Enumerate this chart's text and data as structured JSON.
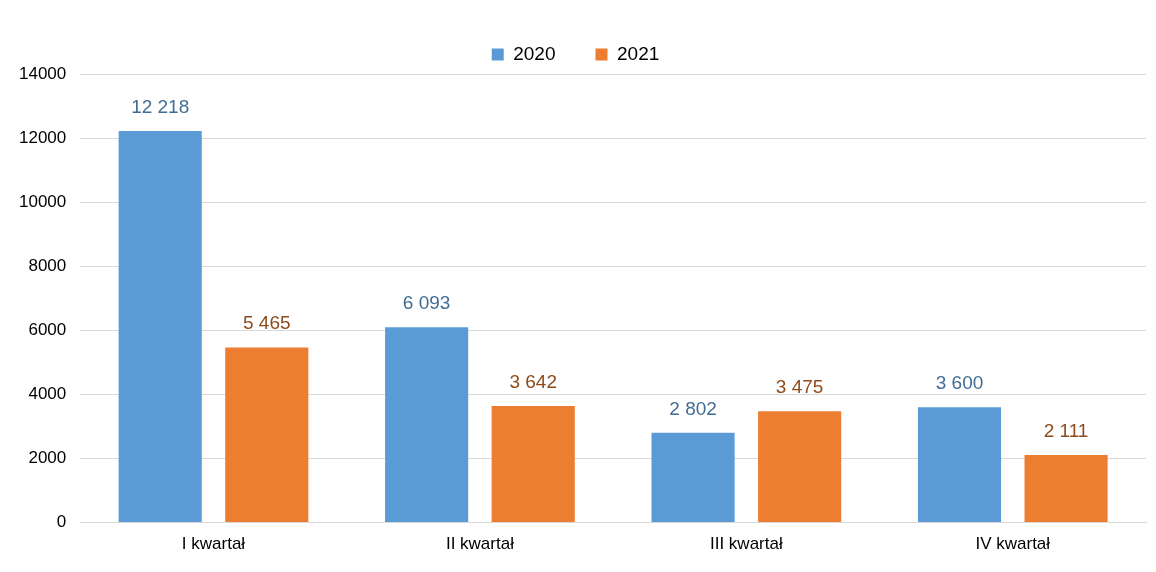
{
  "chart_data": {
    "type": "bar",
    "categories": [
      "I kwartał",
      "II kwartał",
      "III kwartał",
      "IV kwartał"
    ],
    "series": [
      {
        "name": "2020",
        "color": "#5b9bd5",
        "values": [
          12218,
          6093,
          2802,
          3600
        ],
        "value_labels": [
          "12 218",
          "6 093",
          "2 802",
          "3 600"
        ]
      },
      {
        "name": "2021",
        "color": "#ed7d31",
        "values": [
          5465,
          3642,
          3475,
          2111
        ],
        "value_labels": [
          "5 465",
          "3 642",
          "3 475",
          "2 111"
        ]
      }
    ],
    "ylim": [
      0,
      14000
    ],
    "yticks": [
      0,
      2000,
      4000,
      6000,
      8000,
      10000,
      12000,
      14000
    ],
    "grid": "y",
    "legend": "top"
  }
}
